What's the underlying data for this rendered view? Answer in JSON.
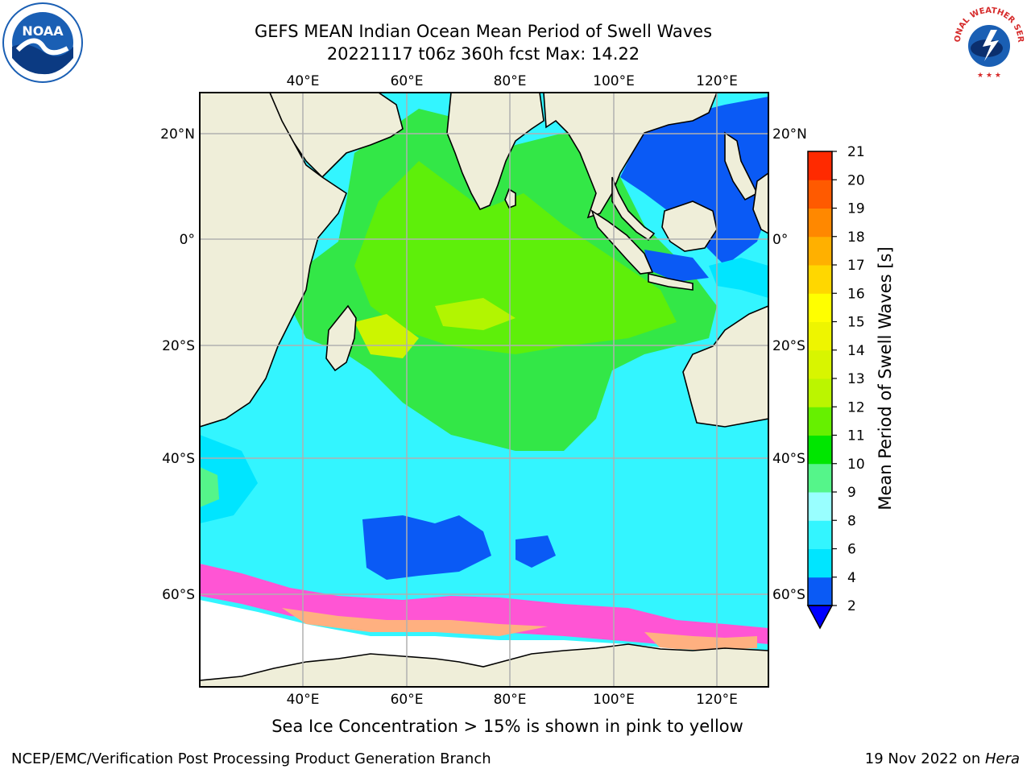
{
  "header": {
    "title_line1": "GEFS MEAN Indian Ocean Mean Period of Swell Waves",
    "title_line2": "20221117 t06z 360h fcst   Max: 14.22"
  },
  "logos": {
    "noaa": {
      "text": "NOAA",
      "icon": "noaa-logo-icon",
      "color": "#1a5fb4"
    },
    "nws": {
      "text": "NATIONAL WEATHER SERVICE",
      "icon": "nws-logo-icon",
      "color": "#d62b2b"
    }
  },
  "map": {
    "top_lon_labels": [
      "40°E",
      "60°E",
      "80°E",
      "100°E",
      "120°E"
    ],
    "bottom_lon_labels": [
      "40°E",
      "60°E",
      "80°E",
      "100°E",
      "120°E"
    ],
    "left_lat_labels": [
      "20°N",
      "0°",
      "20°S",
      "40°S",
      "60°S"
    ],
    "right_lat_labels": [
      "20°N",
      "0°",
      "20°S",
      "40°S",
      "60°S"
    ],
    "land_color": "#efeed9",
    "grid_color": "#b0b0b0"
  },
  "colorbar": {
    "label": "Mean Period of Swell Waves [s]",
    "ticks": [
      "2",
      "4",
      "6",
      "8",
      "9",
      "10",
      "11",
      "12",
      "13",
      "14",
      "15",
      "16",
      "17",
      "18",
      "19",
      "20",
      "21"
    ],
    "colors": [
      "#0a5af5",
      "#00e5ff",
      "#33f5ff",
      "#99ffff",
      "#55f58a",
      "#00e600",
      "#66f000",
      "#bbf500",
      "#d8f500",
      "#eef500",
      "#ffff00",
      "#ffd700",
      "#ffb000",
      "#ff8800",
      "#ff5a00",
      "#ff2a00"
    ],
    "extend_color": "#0000ff"
  },
  "subtitle": "Sea Ice Concentration > 15% is shown in pink to yellow",
  "footer": {
    "left": "NCEP/EMC/Verification Post Processing Product Generation Branch",
    "right_text": "19 Nov 2022 on ",
    "right_italic": "Hera"
  }
}
